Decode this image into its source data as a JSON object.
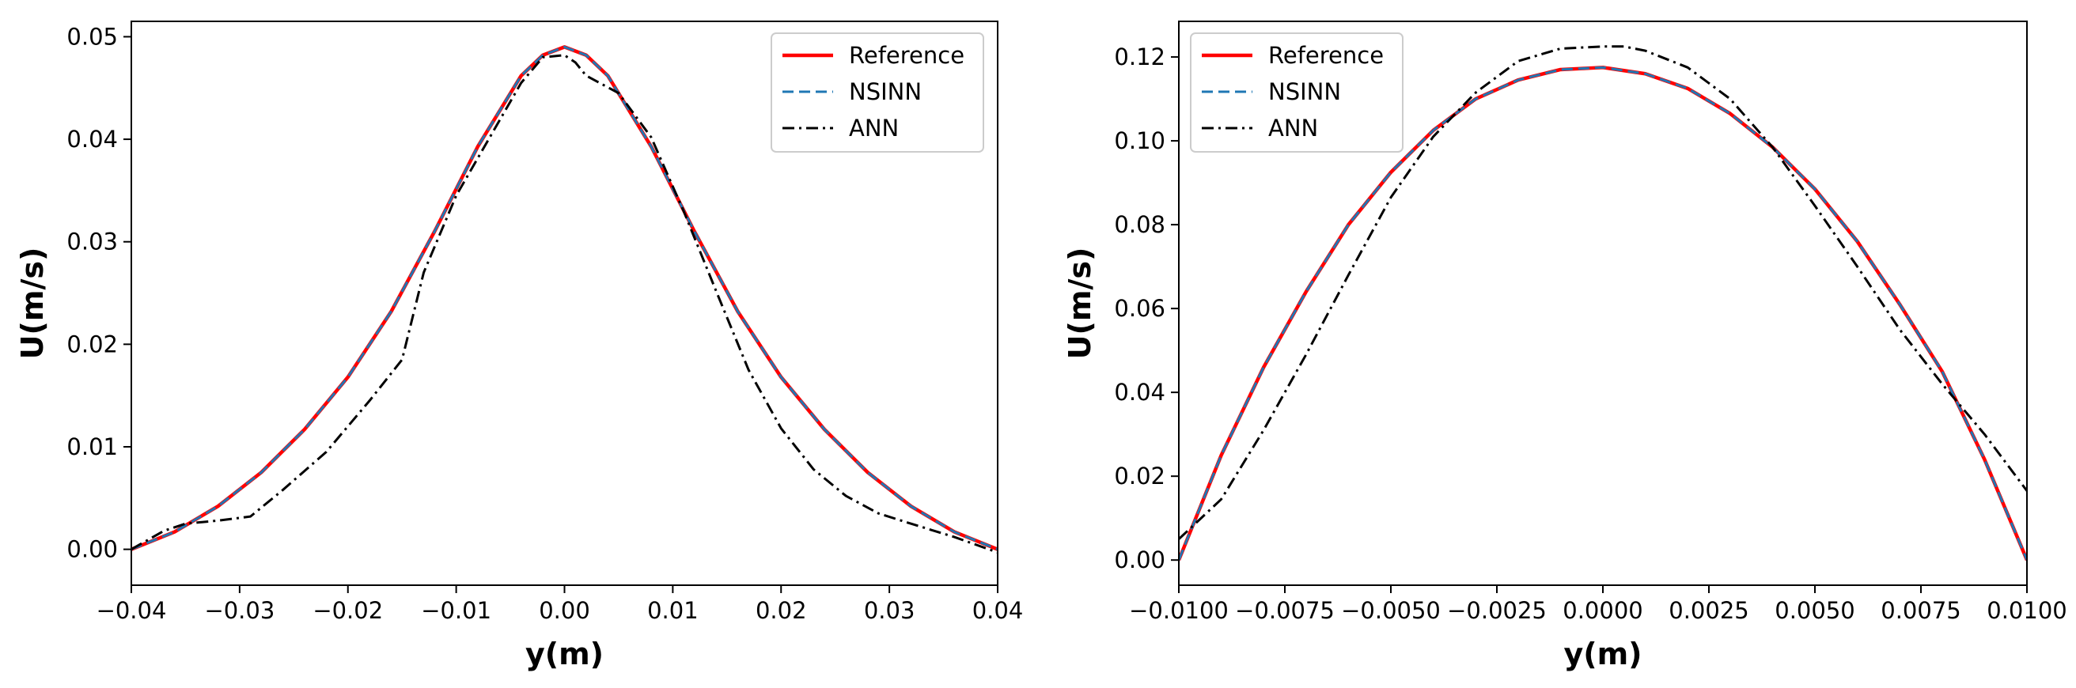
{
  "chart_data": [
    {
      "type": "line",
      "title": "",
      "xlabel": "y(m)",
      "ylabel": "U(m/s)",
      "xlim": [
        -0.04,
        0.04
      ],
      "ylim": [
        -0.0035,
        0.0515
      ],
      "xticks": [
        -0.04,
        -0.03,
        -0.02,
        -0.01,
        0.0,
        0.01,
        0.02,
        0.03,
        0.04
      ],
      "xtick_labels": [
        "−0.04",
        "−0.03",
        "−0.02",
        "−0.01",
        "0.00",
        "0.01",
        "0.02",
        "0.03",
        "0.04"
      ],
      "yticks": [
        0.0,
        0.01,
        0.02,
        0.03,
        0.04,
        0.05
      ],
      "ytick_labels": [
        "0.00",
        "0.01",
        "0.02",
        "0.03",
        "0.04",
        "0.05"
      ],
      "grid": false,
      "legend": {
        "position": "top-right",
        "entries": [
          "Reference",
          "NSINN",
          "ANN"
        ]
      },
      "series": [
        {
          "name": "Reference",
          "color": "#ff0000",
          "style": "solid",
          "x": [
            -0.04,
            -0.036,
            -0.032,
            -0.028,
            -0.024,
            -0.02,
            -0.016,
            -0.012,
            -0.008,
            -0.004,
            -0.002,
            0.0,
            0.002,
            0.004,
            0.008,
            0.012,
            0.016,
            0.02,
            0.024,
            0.028,
            0.032,
            0.036,
            0.04
          ],
          "y": [
            0.0,
            0.0017,
            0.0042,
            0.0075,
            0.0117,
            0.0168,
            0.0232,
            0.031,
            0.0393,
            0.0462,
            0.0482,
            0.049,
            0.0482,
            0.0462,
            0.0393,
            0.031,
            0.0232,
            0.0168,
            0.0117,
            0.0075,
            0.0042,
            0.0017,
            0.0
          ]
        },
        {
          "name": "NSINN",
          "color": "#1f77b4",
          "style": "dashed",
          "x": [
            -0.04,
            -0.036,
            -0.032,
            -0.028,
            -0.024,
            -0.02,
            -0.016,
            -0.012,
            -0.008,
            -0.004,
            -0.002,
            0.0,
            0.002,
            0.004,
            0.008,
            0.012,
            0.016,
            0.02,
            0.024,
            0.028,
            0.032,
            0.036,
            0.04
          ],
          "y": [
            0.0,
            0.0017,
            0.0042,
            0.0075,
            0.0117,
            0.0168,
            0.0232,
            0.031,
            0.0393,
            0.0462,
            0.0482,
            0.049,
            0.0482,
            0.0462,
            0.0393,
            0.031,
            0.0232,
            0.0168,
            0.0117,
            0.0075,
            0.0042,
            0.0017,
            0.0
          ]
        },
        {
          "name": "ANN",
          "color": "#000000",
          "style": "dashdot",
          "x": [
            -0.04,
            -0.037,
            -0.035,
            -0.032,
            -0.029,
            -0.026,
            -0.022,
            -0.018,
            -0.015,
            -0.013,
            -0.01,
            -0.007,
            -0.004,
            -0.002,
            0.0,
            0.001,
            0.002,
            0.005,
            0.008,
            0.011,
            0.014,
            0.017,
            0.02,
            0.023,
            0.026,
            0.029,
            0.032,
            0.036,
            0.04
          ],
          "y": [
            0.0,
            0.0018,
            0.0025,
            0.0028,
            0.0032,
            0.0058,
            0.0095,
            0.0145,
            0.0185,
            0.027,
            0.0345,
            0.04,
            0.0455,
            0.048,
            0.0482,
            0.0475,
            0.0462,
            0.0445,
            0.0402,
            0.033,
            0.0252,
            0.0175,
            0.0118,
            0.0078,
            0.0052,
            0.0035,
            0.0025,
            0.0012,
            -0.0003
          ]
        }
      ]
    },
    {
      "type": "line",
      "title": "",
      "xlabel": "y(m)",
      "ylabel": "U(m/s)",
      "xlim": [
        -0.01,
        0.01
      ],
      "ylim": [
        -0.006,
        0.1285
      ],
      "xticks": [
        -0.01,
        -0.0075,
        -0.005,
        -0.0025,
        0.0,
        0.0025,
        0.005,
        0.0075,
        0.01
      ],
      "xtick_labels": [
        "−0.0100",
        "−0.0075",
        "−0.0050",
        "−0.0025",
        "0.0000",
        "0.0025",
        "0.0050",
        "0.0075",
        "0.0100"
      ],
      "yticks": [
        0.0,
        0.02,
        0.04,
        0.06,
        0.08,
        0.1,
        0.12
      ],
      "ytick_labels": [
        "0.00",
        "0.02",
        "0.04",
        "0.06",
        "0.08",
        "0.10",
        "0.12"
      ],
      "grid": false,
      "legend": {
        "position": "top-left",
        "entries": [
          "Reference",
          "NSINN",
          "ANN"
        ]
      },
      "series": [
        {
          "name": "Reference",
          "color": "#ff0000",
          "style": "solid",
          "x": [
            -0.01,
            -0.009,
            -0.008,
            -0.007,
            -0.006,
            -0.005,
            -0.004,
            -0.003,
            -0.002,
            -0.001,
            0.0,
            0.001,
            0.002,
            0.003,
            0.004,
            0.005,
            0.006,
            0.007,
            0.008,
            0.009,
            0.01
          ],
          "y": [
            0.0,
            0.025,
            0.046,
            0.064,
            0.08,
            0.0925,
            0.1025,
            0.11,
            0.1145,
            0.117,
            0.1175,
            0.116,
            0.1125,
            0.1065,
            0.0985,
            0.0885,
            0.076,
            0.061,
            0.045,
            0.024,
            0.0
          ]
        },
        {
          "name": "NSINN",
          "color": "#1f77b4",
          "style": "dashed",
          "x": [
            -0.01,
            -0.009,
            -0.008,
            -0.007,
            -0.006,
            -0.005,
            -0.004,
            -0.003,
            -0.002,
            -0.001,
            0.0,
            0.001,
            0.002,
            0.003,
            0.004,
            0.005,
            0.006,
            0.007,
            0.008,
            0.009,
            0.01
          ],
          "y": [
            0.0,
            0.025,
            0.046,
            0.064,
            0.08,
            0.0925,
            0.1025,
            0.11,
            0.1145,
            0.117,
            0.1175,
            0.116,
            0.1125,
            0.1065,
            0.0985,
            0.0885,
            0.076,
            0.061,
            0.045,
            0.024,
            0.0
          ]
        },
        {
          "name": "ANN",
          "color": "#000000",
          "style": "dashdot",
          "x": [
            -0.01,
            -0.009,
            -0.008,
            -0.007,
            -0.006,
            -0.005,
            -0.004,
            -0.003,
            -0.002,
            -0.001,
            0.0,
            0.0005,
            0.001,
            0.002,
            0.003,
            0.004,
            0.005,
            0.006,
            0.007,
            0.008,
            0.009,
            0.01
          ],
          "y": [
            0.005,
            0.0145,
            0.031,
            0.049,
            0.068,
            0.0865,
            0.101,
            0.1115,
            0.119,
            0.122,
            0.1225,
            0.1225,
            0.1215,
            0.1175,
            0.11,
            0.0985,
            0.0845,
            0.07,
            0.055,
            0.042,
            0.03,
            0.0165
          ]
        }
      ]
    }
  ]
}
